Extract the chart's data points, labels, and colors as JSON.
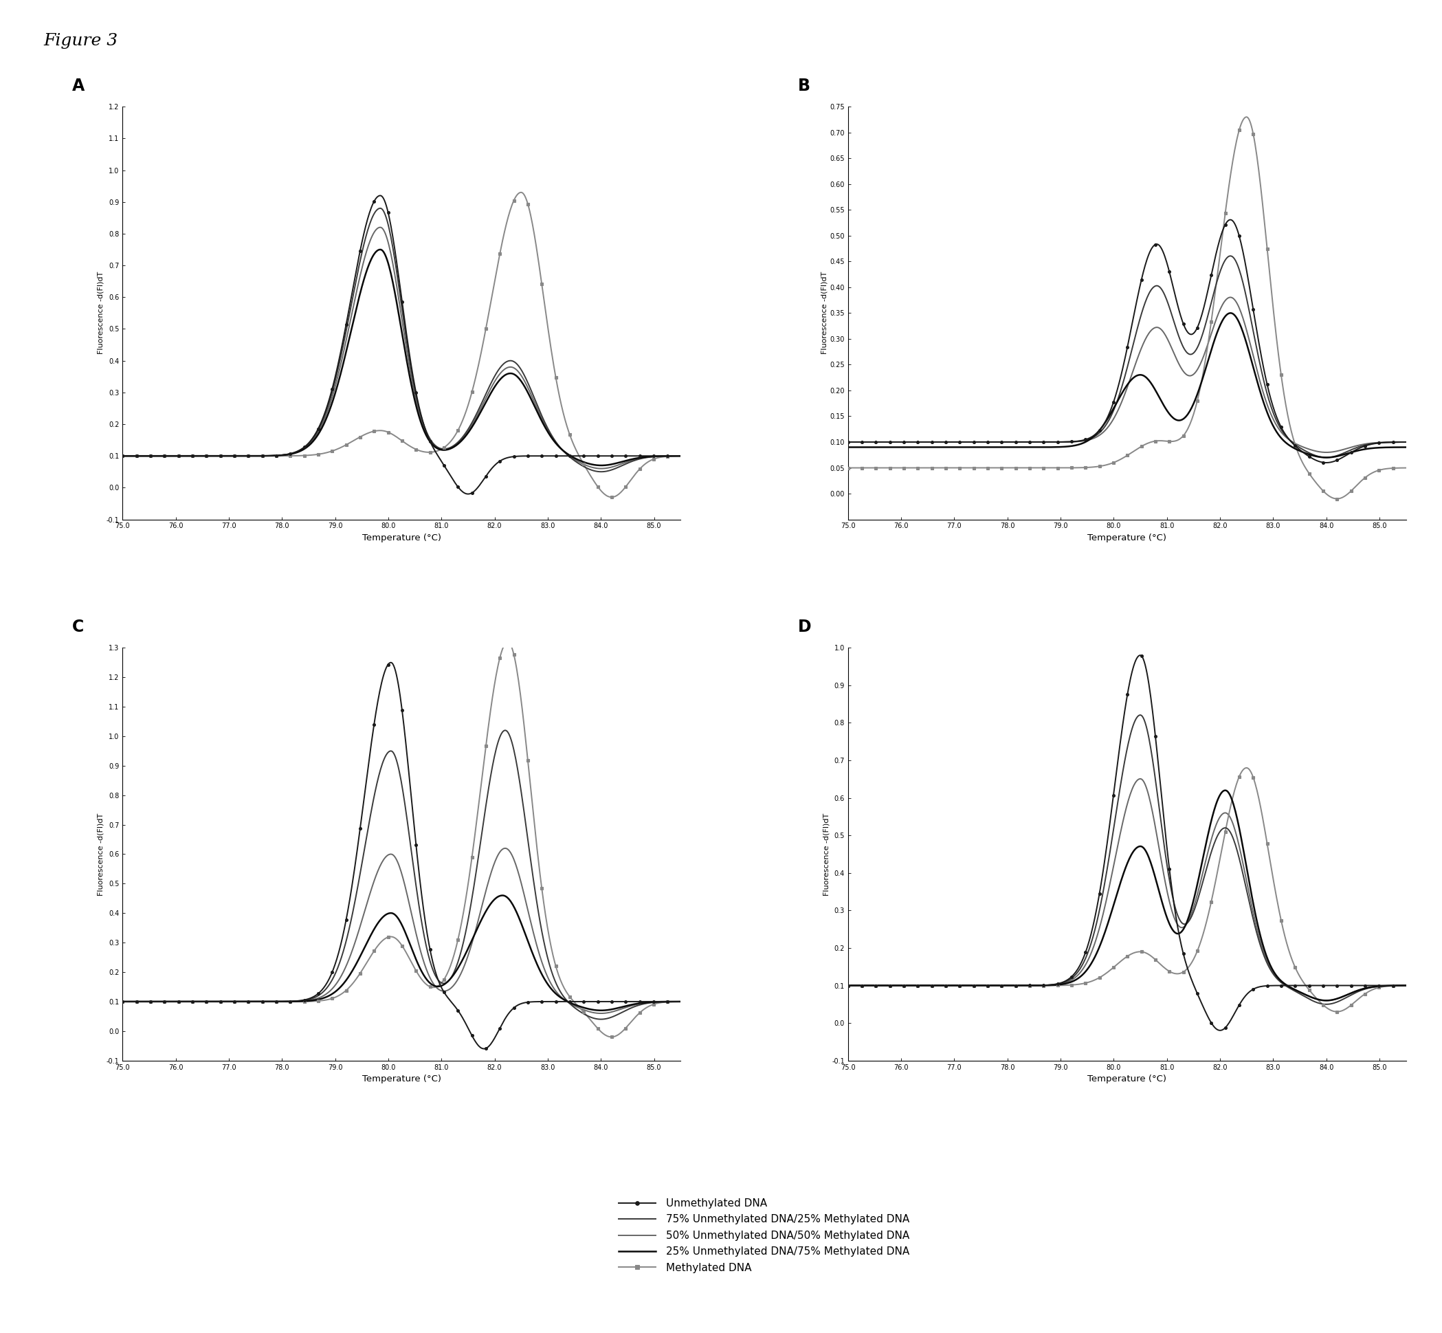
{
  "figure_title": "Figure 3",
  "xlabel": "Temperature (°C)",
  "ylabel": "Fluorescence -d(Fl)dT",
  "panels": [
    "A",
    "B",
    "C",
    "D"
  ],
  "legend_entries": [
    "Unmethylated DNA",
    "75% Unmethylated DNA/25% Methylated DNA",
    "50% Unmethylated DNA/50% Methylated DNA",
    "25% Unmethylated DNA/75% Methylated DNA",
    "Methylated DNA"
  ],
  "panel_ylims": {
    "A": [
      -0.1,
      1.2
    ],
    "B": [
      -0.05,
      0.75
    ],
    "C": [
      -0.1,
      1.3
    ],
    "D": [
      -0.1,
      1.0
    ]
  },
  "panel_yticks": {
    "A": [
      -0.1,
      0.0,
      0.1,
      0.2,
      0.3,
      0.4,
      0.5,
      0.6,
      0.7,
      0.8,
      0.9,
      1.0,
      1.1,
      1.2
    ],
    "B": [
      0.0,
      0.05,
      0.1,
      0.15,
      0.2,
      0.25,
      0.3,
      0.35,
      0.4,
      0.45,
      0.5,
      0.55,
      0.6,
      0.65,
      0.7,
      0.75
    ],
    "C": [
      -0.1,
      0.0,
      0.1,
      0.2,
      0.3,
      0.4,
      0.5,
      0.6,
      0.7,
      0.8,
      0.9,
      1.0,
      1.1,
      1.2,
      1.3
    ],
    "D": [
      -0.1,
      0.0,
      0.1,
      0.2,
      0.3,
      0.4,
      0.5,
      0.6,
      0.7,
      0.8,
      0.9,
      1.0
    ]
  },
  "xticks": [
    75.0,
    76.0,
    77.0,
    78.0,
    79.0,
    80.0,
    81.0,
    82.0,
    83.0,
    84.0,
    85.0
  ],
  "xlim": [
    75.0,
    85.5
  ]
}
